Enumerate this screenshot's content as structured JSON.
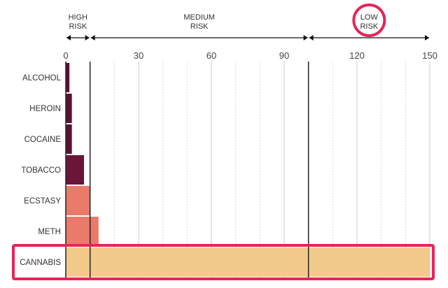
{
  "chart_data": {
    "type": "bar",
    "orientation": "horizontal",
    "categories": [
      "ALCOHOL",
      "HEROIN",
      "COCAINE",
      "TOBACCO",
      "ECSTASY",
      "METH",
      "CANNABIS"
    ],
    "values": [
      1.5,
      2.5,
      2.5,
      7.5,
      10,
      13.5,
      150
    ],
    "bar_colors": [
      "#5e1033",
      "#5e1033",
      "#5e1033",
      "#6b1538",
      "#ea7a6a",
      "#ea7a6a",
      "#f2cb8c"
    ],
    "xlim": [
      0,
      150
    ],
    "x_ticks": [
      0,
      30,
      60,
      90,
      120,
      150
    ],
    "x_tick_labels": [
      "0",
      "30",
      "60",
      "90",
      "120",
      "150"
    ],
    "grid": true,
    "risk_zones": [
      {
        "label_line1": "HIGH",
        "label_line2": "RISK",
        "from": 0,
        "to": 10
      },
      {
        "label_line1": "MEDIUM",
        "label_line2": "RISK",
        "from": 10,
        "to": 100
      },
      {
        "label_line1": "LOW",
        "label_line2": "RISK",
        "from": 100,
        "to": 150
      }
    ],
    "threshold_lines": [
      10,
      100
    ],
    "highlight": {
      "zone_label": "LOW RISK",
      "category": "CANNABIS",
      "color": "#e8245a"
    }
  }
}
